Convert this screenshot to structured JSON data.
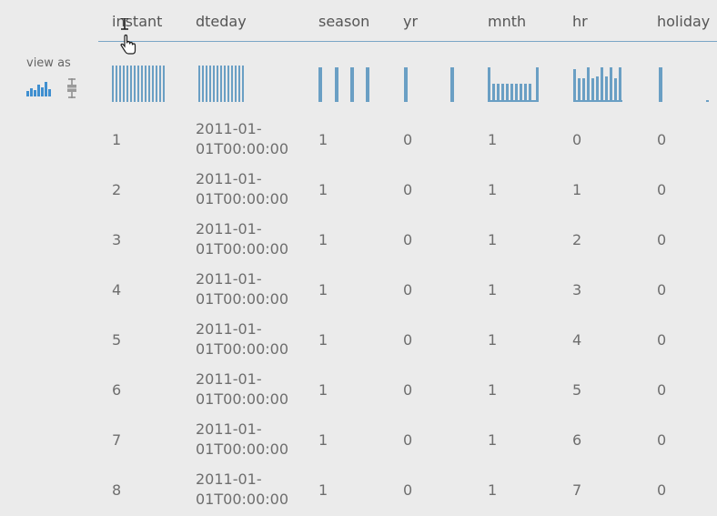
{
  "sidebar": {
    "view_as_label": "view as",
    "view_icons": [
      {
        "icon": "histogram-icon"
      },
      {
        "icon": "boxplot-icon"
      }
    ]
  },
  "columns": [
    {
      "key": "instant",
      "label": "instant"
    },
    {
      "key": "dteday",
      "label": "dteday"
    },
    {
      "key": "season",
      "label": "season"
    },
    {
      "key": "yr",
      "label": "yr"
    },
    {
      "key": "mnth",
      "label": "mnth"
    },
    {
      "key": "hr",
      "label": "hr"
    },
    {
      "key": "holiday",
      "label": "holiday"
    }
  ],
  "histogram_color": "#6a9fc4",
  "rows": [
    {
      "instant": "1",
      "dteday_l1": "2011-01-",
      "dteday_l2": "01T00:00:00",
      "season": "1",
      "yr": "0",
      "mnth": "1",
      "hr": "0",
      "holiday": "0"
    },
    {
      "instant": "2",
      "dteday_l1": "2011-01-",
      "dteday_l2": "01T00:00:00",
      "season": "1",
      "yr": "0",
      "mnth": "1",
      "hr": "1",
      "holiday": "0"
    },
    {
      "instant": "3",
      "dteday_l1": "2011-01-",
      "dteday_l2": "01T00:00:00",
      "season": "1",
      "yr": "0",
      "mnth": "1",
      "hr": "2",
      "holiday": "0"
    },
    {
      "instant": "4",
      "dteday_l1": "2011-01-",
      "dteday_l2": "01T00:00:00",
      "season": "1",
      "yr": "0",
      "mnth": "1",
      "hr": "3",
      "holiday": "0"
    },
    {
      "instant": "5",
      "dteday_l1": "2011-01-",
      "dteday_l2": "01T00:00:00",
      "season": "1",
      "yr": "0",
      "mnth": "1",
      "hr": "4",
      "holiday": "0"
    },
    {
      "instant": "6",
      "dteday_l1": "2011-01-",
      "dteday_l2": "01T00:00:00",
      "season": "1",
      "yr": "0",
      "mnth": "1",
      "hr": "5",
      "holiday": "0"
    },
    {
      "instant": "7",
      "dteday_l1": "2011-01-",
      "dteday_l2": "01T00:00:00",
      "season": "1",
      "yr": "0",
      "mnth": "1",
      "hr": "6",
      "holiday": "0"
    },
    {
      "instant": "8",
      "dteday_l1": "2011-01-",
      "dteday_l2": "01T00:00:00",
      "season": "1",
      "yr": "0",
      "mnth": "1",
      "hr": "7",
      "holiday": "0"
    }
  ]
}
